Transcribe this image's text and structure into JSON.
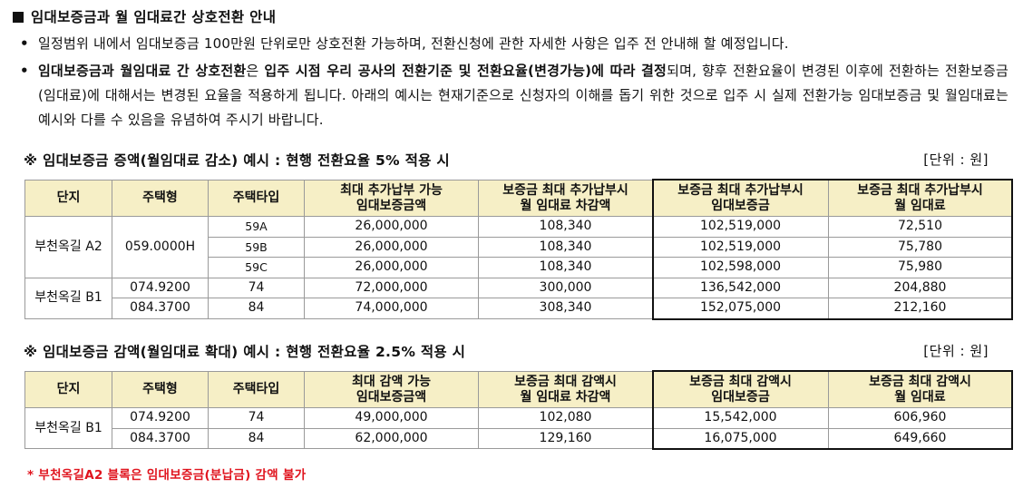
{
  "heading": "임대보증금과 월 임대료간 상호전환 안내",
  "bullets": [
    {
      "parts": [
        {
          "text": "일정범위 내에서 임대보증금 100만원 단위로만 상호전환 가능하며, 전환신청에 관한 자세한 사항은 입주 전 안내해 할 예정입니다.",
          "bold": false
        }
      ]
    },
    {
      "parts": [
        {
          "text": "임대보증금과 월임대료 간 상호전환",
          "bold": true
        },
        {
          "text": "은 ",
          "bold": false
        },
        {
          "text": "입주 시점 우리 공사의 전환기준 및 전환요율(변경가능)에 따라 결정",
          "bold": true
        },
        {
          "text": "되며, 향후 전환요율이 변경된 이후에 전환하는 전환보증금(임대료)에 대해서는 변경된 요율을 적용하게 됩니다. 아래의 예시는 현재기준으로 신청자의 이해를 돕기 위한 것으로 입주 시 실제 전환가능 임대보증금 및 월임대료는 예시와 다를 수 있음을 유념하여 주시기 바랍니다.",
          "bold": false
        }
      ]
    }
  ],
  "section1": {
    "title": "※ 임대보증금 증액(월임대료 감소) 예시 : 현행 전환요율 5% 적용 시",
    "unit": "[단위 : 원]",
    "headers": [
      "단지",
      "주택형",
      "주택타입",
      "최대 추가납부 가능\n임대보증금액",
      "보증금 최대 추가납부시\n월 임대료 차감액",
      "보증금 최대 추가납부시\n임대보증금",
      "보증금 최대 추가납부시\n월 임대료"
    ],
    "groups": [
      {
        "complex": "부천옥길 A2",
        "housing_type": "059.0000H",
        "rows": [
          {
            "type": "59A",
            "max_deposit": "26,000,000",
            "rent_reduction": "108,340",
            "deposit": "102,519,000",
            "rent": "72,510"
          },
          {
            "type": "59B",
            "max_deposit": "26,000,000",
            "rent_reduction": "108,340",
            "deposit": "102,519,000",
            "rent": "75,780"
          },
          {
            "type": "59C",
            "max_deposit": "26,000,000",
            "rent_reduction": "108,340",
            "deposit": "102,598,000",
            "rent": "75,980"
          }
        ]
      },
      {
        "complex": "부천옥길 B1",
        "rows": [
          {
            "housing_type": "074.9200",
            "type": "74",
            "max_deposit": "72,000,000",
            "rent_reduction": "300,000",
            "deposit": "136,542,000",
            "rent": "204,880"
          },
          {
            "housing_type": "084.3700",
            "type": "84",
            "max_deposit": "74,000,000",
            "rent_reduction": "308,340",
            "deposit": "152,075,000",
            "rent": "212,160"
          }
        ]
      }
    ]
  },
  "section2": {
    "title": "※ 임대보증금 감액(월임대료 확대) 예시 : 현행 전환요율 2.5% 적용 시",
    "unit": "[단위 : 원]",
    "headers": [
      "단지",
      "주택형",
      "주택타입",
      "최대 감액 가능\n임대보증금액",
      "보증금 최대 감액시\n월 임대료 차감액",
      "보증금 최대 감액시\n임대보증금",
      "보증금 최대 감액시\n월 임대료"
    ],
    "groups": [
      {
        "complex": "부천옥길 B1",
        "rows": [
          {
            "housing_type": "074.9200",
            "type": "74",
            "max_deposit": "49,000,000",
            "rent_change": "102,080",
            "deposit": "15,542,000",
            "rent": "606,960"
          },
          {
            "housing_type": "084.3700",
            "type": "84",
            "max_deposit": "62,000,000",
            "rent_change": "129,160",
            "deposit": "16,075,000",
            "rent": "649,660"
          }
        ]
      }
    ]
  },
  "note": "* 부천옥길A2 블록은 임대보증금(분납금) 감액 불가",
  "colors": {
    "header_bg": "#f6efc6",
    "note": "#e0141e",
    "border": "#9a9a9a"
  }
}
